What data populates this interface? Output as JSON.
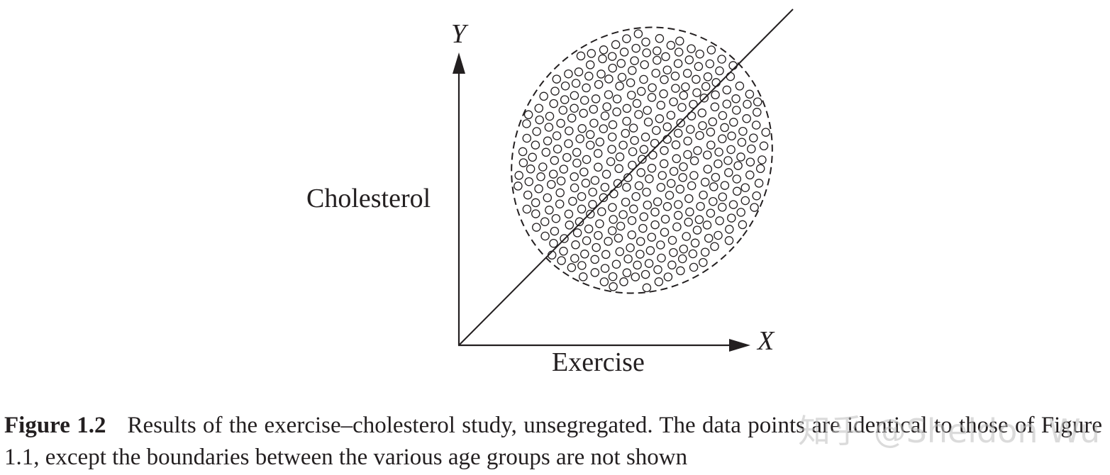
{
  "figure": {
    "y_axis_letter": "Y",
    "x_axis_letter": "X",
    "y_axis_name": "Cholesterol",
    "x_axis_name": "Exercise",
    "colors": {
      "ink": "#231f20",
      "background": "#ffffff"
    },
    "markers": {
      "shape": "open-circle",
      "approx_count": 420
    },
    "boundary": {
      "shape": "ellipse",
      "style": "dashed"
    },
    "trend_line": {
      "style": "solid",
      "direction": "increasing"
    }
  },
  "caption": {
    "label": "Figure 1.2",
    "text": "Results of the exercise–cholesterol study, unsegregated. The data points are identical to those of Figure 1.1, except the boundaries between the various age groups are not shown"
  },
  "watermark": {
    "text": "知乎 @Sheldon Wu"
  }
}
